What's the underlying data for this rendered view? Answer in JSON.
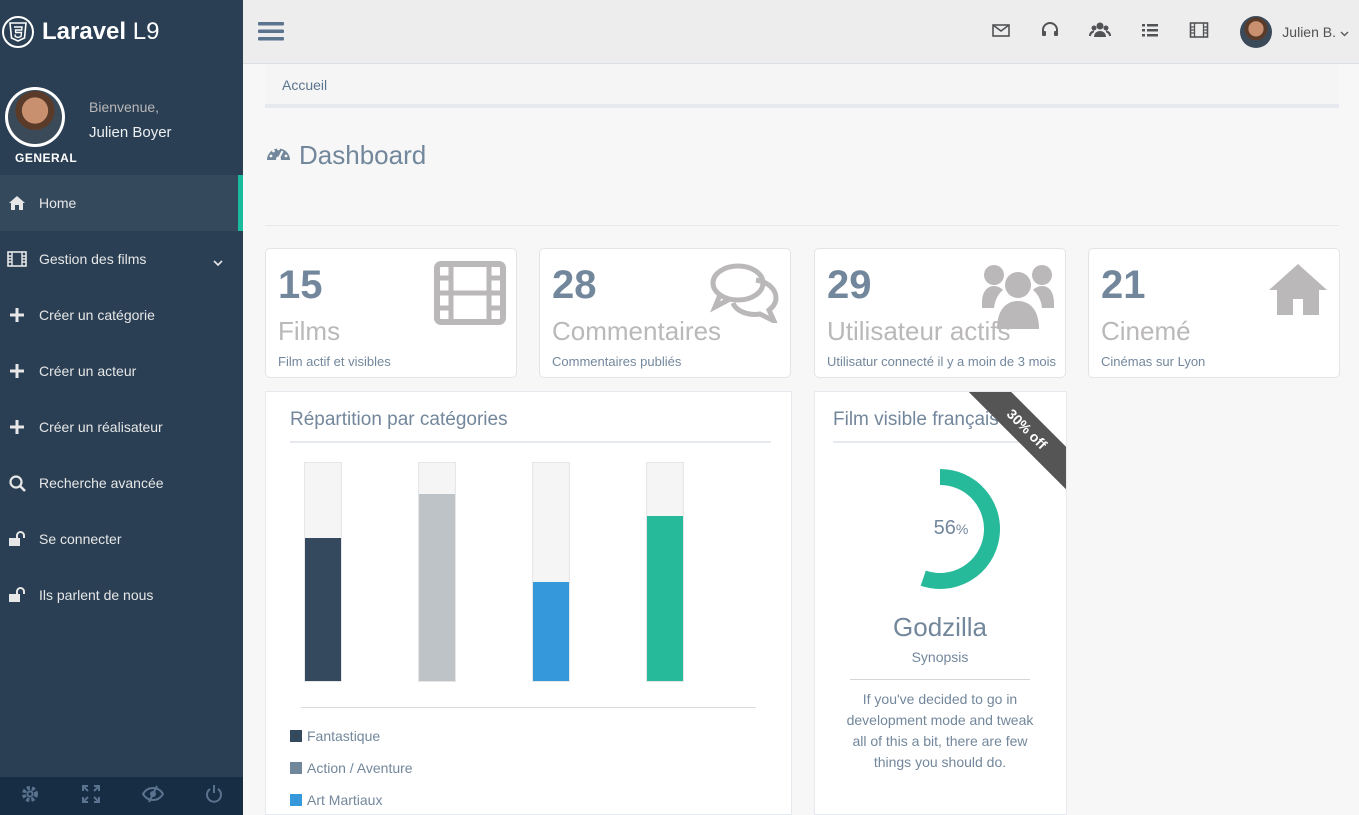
{
  "brand": {
    "name_bold": "Laravel",
    "name_rest": " L9"
  },
  "profile": {
    "welcome": "Bienvenue,",
    "name": "Julien Boyer",
    "section": "GENERAL"
  },
  "sidebar": {
    "items": [
      {
        "label": "Home",
        "icon": "home-icon"
      },
      {
        "label": "Gestion des films",
        "icon": "film-icon"
      },
      {
        "label": "Créer un catégorie",
        "icon": "plus-icon"
      },
      {
        "label": "Créer un acteur",
        "icon": "plus-icon"
      },
      {
        "label": "Créer un réalisateur",
        "icon": "plus-icon"
      },
      {
        "label": "Recherche avancée",
        "icon": "search-icon"
      },
      {
        "label": "Se connecter",
        "icon": "unlock-icon"
      },
      {
        "label": "Ils parlent de nous",
        "icon": "unlock-icon"
      }
    ]
  },
  "topnav": {
    "user": "Julien B."
  },
  "breadcrumb": "Accueil",
  "page_title": "Dashboard",
  "tiles": [
    {
      "count": "15",
      "label": "Films",
      "desc": "Film actif et visibles",
      "icon": "film-icon"
    },
    {
      "count": "28",
      "label": "Commentaires",
      "desc": "Commentaires publiés",
      "icon": "comments-icon"
    },
    {
      "count": "29",
      "label": "Utilisateur actifs",
      "desc": "Utilisatur connecté il y a moin de 3 mois",
      "icon": "users-icon"
    },
    {
      "count": "21",
      "label": "Cinemé",
      "desc": "Cinémas sur Lyon",
      "icon": "home-icon"
    }
  ],
  "chart_panel": {
    "title": "Répartition par catégories"
  },
  "chart_data": {
    "type": "bar",
    "categories": [
      "Fantastique",
      "Action / Aventure",
      "Art Martiaux",
      ""
    ],
    "values": [
      65,
      85,
      45,
      75
    ],
    "ylim": [
      0,
      100
    ],
    "colors": [
      "#34495e",
      "#bdc3c7",
      "#3498db",
      "#26b99a"
    ],
    "legend": [
      "Fantastique",
      "Action / Aventure",
      "Art Martiaux"
    ]
  },
  "film_panel": {
    "title": "Film visible français",
    "ribbon": "30% off",
    "percent": 56,
    "percent_text": "56",
    "percent_sign": "%",
    "movie": "Godzilla",
    "synopsis_label": "Synopsis",
    "synopsis": "If you've decided to go in development mode and tweak all of this a bit, there are few things you should do.",
    "accent": "#26b99a"
  }
}
